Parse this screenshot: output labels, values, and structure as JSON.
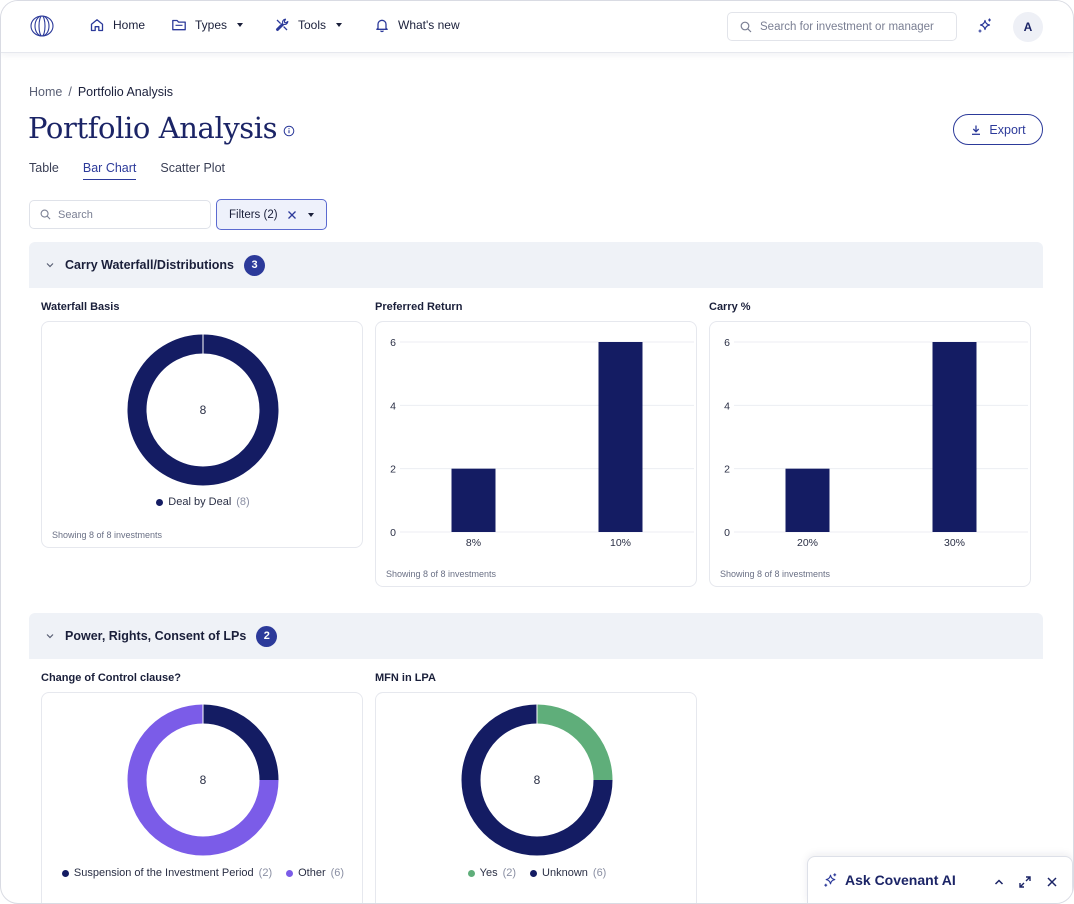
{
  "nav": {
    "home": "Home",
    "types": "Types",
    "tools": "Tools",
    "whats_new": "What's new",
    "search_placeholder": "Search for investment or manager",
    "avatar_initial": "A"
  },
  "breadcrumb": {
    "home": "Home",
    "separator": "/",
    "current": "Portfolio Analysis"
  },
  "page": {
    "title": "Portfolio Analysis",
    "export_label": "Export"
  },
  "tabs": [
    {
      "label": "Table",
      "active": false
    },
    {
      "label": "Bar Chart",
      "active": true
    },
    {
      "label": "Scatter Plot",
      "active": false
    }
  ],
  "filters": {
    "search_placeholder": "Search",
    "filters_label": "Filters (2)"
  },
  "colors": {
    "navy": "#141c63",
    "purple": "#7b5ce8",
    "green": "#5fae7a",
    "accent": "#2c3a9a"
  },
  "sections": [
    {
      "title": "Carry Waterfall/Distributions",
      "count": "3"
    },
    {
      "title": "Power, Rights, Consent of LPs",
      "count": "2"
    }
  ],
  "chart_data": [
    {
      "type": "pie",
      "title": "Waterfall Basis",
      "center_label": "8",
      "slices": [
        {
          "name": "Deal by Deal",
          "value": 8,
          "color": "#141c63"
        }
      ],
      "footer": "Showing 8 of 8 investments"
    },
    {
      "type": "bar",
      "title": "Preferred Return",
      "categories": [
        "8%",
        "10%"
      ],
      "values": [
        2,
        6
      ],
      "yticks": [
        "0",
        "2",
        "4",
        "6"
      ],
      "footer": "Showing 8 of 8 investments"
    },
    {
      "type": "bar",
      "title": "Carry %",
      "categories": [
        "20%",
        "30%"
      ],
      "values": [
        2,
        6
      ],
      "yticks": [
        "0",
        "2",
        "4",
        "6"
      ],
      "footer": "Showing 8 of 8 investments"
    },
    {
      "type": "pie",
      "title": "Change of Control clause?",
      "center_label": "8",
      "slices": [
        {
          "name": "Suspension of the Investment Period",
          "value": 2,
          "color": "#141c63"
        },
        {
          "name": "Other",
          "value": 6,
          "color": "#7b5ce8"
        }
      ]
    },
    {
      "type": "pie",
      "title": "MFN in LPA",
      "center_label": "8",
      "slices": [
        {
          "name": "Yes",
          "value": 2,
          "color": "#5fae7a"
        },
        {
          "name": "Unknown",
          "value": 6,
          "color": "#141c63"
        }
      ]
    }
  ],
  "ask_ai": {
    "label": "Ask Covenant AI"
  }
}
